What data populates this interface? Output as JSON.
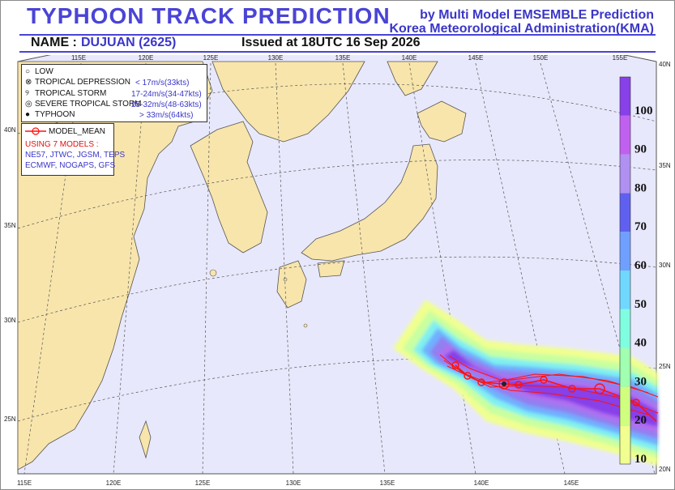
{
  "header": {
    "title": "TYPHOON  TRACK  PREDICTION",
    "source_line1": "by Multi Model EMSEMBLE Prediction",
    "source_line2": "Korea Meteorological Administration(KMA)",
    "name_label": "NAME :",
    "name_value": "DUJUAN (2625)",
    "issued": "Issued at  18UTC 16 Sep 2026"
  },
  "legend_intensity": [
    {
      "symbol": "low-icon",
      "label": "LOW",
      "threshold": ""
    },
    {
      "symbol": "tropical-depression-icon",
      "label": "TROPICAL DEPRESSION",
      "threshold": "< 17m/s(33kts)"
    },
    {
      "symbol": "tropical-storm-icon",
      "label": "TROPICAL STORM",
      "threshold": "17-24m/s(34-47kts)"
    },
    {
      "symbol": "severe-tropical-storm-icon",
      "label": "SEVERE TROPICAL STORM",
      "threshold": "25-32m/s(48-63kts)"
    },
    {
      "symbol": "typhoon-icon",
      "label": "TYPHOON",
      "threshold": "> 33m/s(64kts)"
    }
  ],
  "legend_models": {
    "mean_label": "MODEL_MEAN",
    "using": "USING 7 MODELS :",
    "models_line1": "NE57, JTWC, JGSM, TEPS",
    "models_line2": "ECMWF, NOGAPS, GFS"
  },
  "lon_labels_top": [
    "115E",
    "120E",
    "125E",
    "130E",
    "135E",
    "140E",
    "145E",
    "150E",
    "155E"
  ],
  "lon_labels_bottom": [
    "115E",
    "120E",
    "125E",
    "130E",
    "135E",
    "140E",
    "145E"
  ],
  "lat_labels_left": [
    "40N",
    "35N",
    "30N",
    "25N"
  ],
  "lat_labels_right": [
    "40N",
    "35N",
    "30N",
    "25N",
    "20N"
  ],
  "colorbar": {
    "ticks": [
      "10",
      "20",
      "30",
      "40",
      "50",
      "60",
      "70",
      "80",
      "90",
      "100"
    ],
    "colors": [
      "#f0ff90",
      "#d0ff80",
      "#a0ffb0",
      "#80ffe0",
      "#70d8ff",
      "#70a0ff",
      "#6060f0",
      "#b090f0",
      "#c060f0",
      "#8840e8"
    ]
  },
  "colors": {
    "land": "#f8e5ac",
    "sea": "#e8e8fc",
    "track": "#ff1010",
    "title": "#4a44d6"
  }
}
